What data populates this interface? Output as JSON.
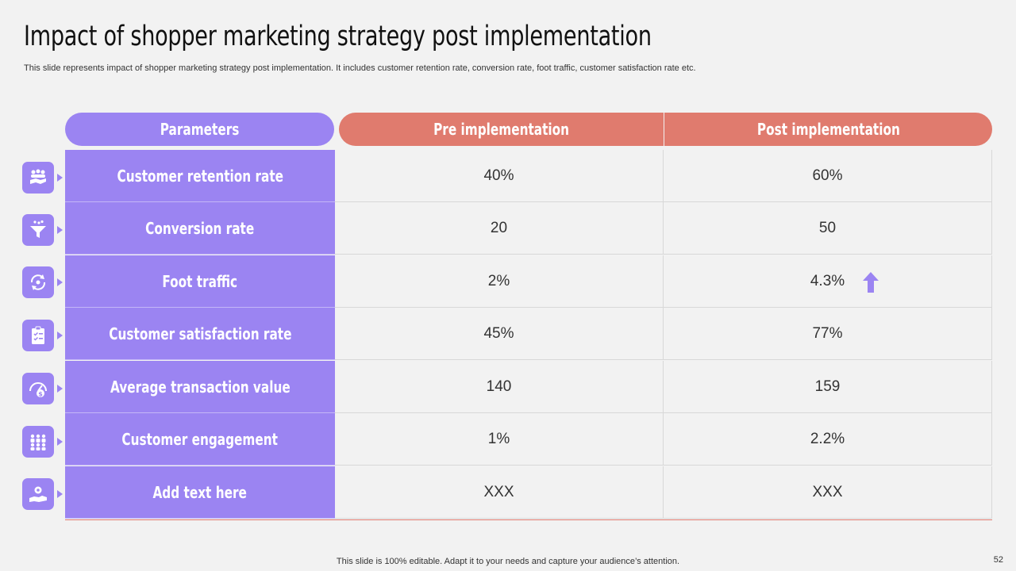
{
  "slide": {
    "title": "Impact of shopper marketing strategy post implementation",
    "subtitle": "This slide represents impact of shopper marketing strategy post implementation. It includes customer retention rate, conversion rate, foot traffic, customer satisfaction rate etc.",
    "footer": "This slide is 100% editable. Adapt it to your needs and capture your audience’s attention.",
    "page_number": "52"
  },
  "table": {
    "headers": {
      "parameters": "Parameters",
      "pre": "Pre implementation",
      "post": "Post implementation"
    },
    "rows": [
      {
        "parameter": "Customer retention rate",
        "pre": "40%",
        "post": "60%",
        "icon": "handshake-people-icon"
      },
      {
        "parameter": "Conversion rate",
        "pre": "20",
        "post": "50",
        "icon": "funnel-icon"
      },
      {
        "parameter": "Foot traffic",
        "pre": "2%",
        "post": "4.3%",
        "icon": "traffic-cycle-icon"
      },
      {
        "parameter": "Customer satisfaction rate",
        "pre": "45%",
        "post": "77%",
        "icon": "clipboard-checklist-icon"
      },
      {
        "parameter": "Average transaction value",
        "pre": "140",
        "post": "159",
        "icon": "dollar-gauge-icon"
      },
      {
        "parameter": "Customer engagement",
        "pre": "1%",
        "post": "2.2%",
        "icon": "group-people-icon"
      },
      {
        "parameter": "Add text here",
        "pre": "XXX",
        "post": "XXX",
        "icon": "hand-gear-icon"
      }
    ],
    "highlight": {
      "row": "Foot traffic",
      "icon": "up-arrow-icon"
    }
  },
  "colors": {
    "purple": "#9b84f2",
    "coral": "#e07b6e",
    "background": "#f2f2f2"
  }
}
